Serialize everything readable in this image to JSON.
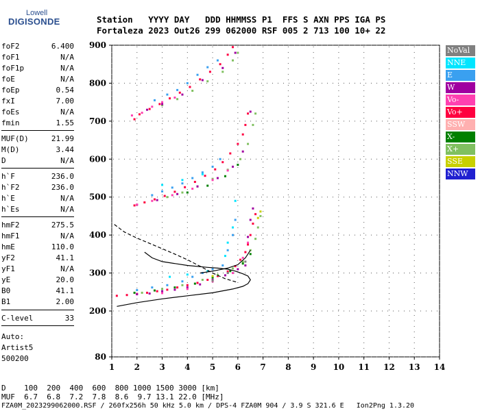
{
  "logo": {
    "top": "Lowell",
    "main": "DIGISONDE"
  },
  "header": {
    "line1": "Station   YYYY DAY   DDD HHMMSS P1  FFS S AXN PPS IGA PS",
    "line2": "Fortaleza 2023 Out26 299 062000 RSF 005 2 713 100 10+ 22"
  },
  "params": [
    {
      "k": "foF2",
      "v": "6.400"
    },
    {
      "k": "foF1",
      "v": "N/A"
    },
    {
      "k": "foF1p",
      "v": "N/A"
    },
    {
      "k": "foE",
      "v": "N/A"
    },
    {
      "k": "foEp",
      "v": "0.54"
    },
    {
      "k": "fxI",
      "v": "7.00"
    },
    {
      "k": "foEs",
      "v": "N/A"
    },
    {
      "k": "fmin",
      "v": "1.55"
    },
    {
      "k": "MUF(D)",
      "v": "21.99"
    },
    {
      "k": "M(D)",
      "v": "3.44"
    },
    {
      "k": "D",
      "v": "N/A"
    },
    {
      "k": "h`F",
      "v": "236.0"
    },
    {
      "k": "h`F2",
      "v": "236.0"
    },
    {
      "k": "h`E",
      "v": "N/A"
    },
    {
      "k": "h`Es",
      "v": "N/A"
    },
    {
      "k": "hmF2",
      "v": "275.5"
    },
    {
      "k": "hmF1",
      "v": "N/A"
    },
    {
      "k": "hmE",
      "v": "110.0"
    },
    {
      "k": "yF2",
      "v": "41.1"
    },
    {
      "k": "yF1",
      "v": "N/A"
    },
    {
      "k": "yE",
      "v": "20.0"
    },
    {
      "k": "B0",
      "v": "41.1"
    },
    {
      "k": "B1",
      "v": "2.00"
    },
    {
      "k": "C-level",
      "v": "33"
    }
  ],
  "auto": {
    "l1": "Auto:",
    "l2": "Artist5",
    "l3": "500200"
  },
  "legend": [
    {
      "label": "NoVal",
      "color": "#808080"
    },
    {
      "label": "NNE",
      "color": "#00e5ff"
    },
    {
      "label": "E",
      "color": "#3aa0f0"
    },
    {
      "label": "W",
      "color": "#a000a0"
    },
    {
      "label": "Vo-",
      "color": "#ff40b0"
    },
    {
      "label": "Vo+",
      "color": "#ff0040"
    },
    {
      "label": "SSW",
      "color": "#ffb0b0"
    },
    {
      "label": "X-",
      "color": "#008000"
    },
    {
      "label": "X+",
      "color": "#80c060"
    },
    {
      "label": "SSE",
      "color": "#c8d000"
    },
    {
      "label": "NNW",
      "color": "#2020d0"
    }
  ],
  "footer": {
    "d_line": "D    100  200  400  600  800 1000 1500 3000 [km]",
    "muf_line": "MUF  6.7  6.8  7.2  7.8  8.6  9.7 13.1 22.0 [MHz]",
    "file_line": "FZA0M_2023299062000.RSF / 260fx256h 50 kHz 5.0 km / DPS-4 FZA0M 904 / 3.9 S 321.6 E   Ion2Png 1.3.20"
  },
  "chart_data": {
    "type": "scatter",
    "xlim": [
      1,
      14
    ],
    "ylim": [
      80,
      900
    ],
    "x_ticks": [
      1,
      2,
      3,
      4,
      5,
      6,
      7,
      8,
      9,
      10,
      11,
      12,
      13,
      14
    ],
    "y_ticks": [
      80,
      200,
      300,
      400,
      500,
      600,
      700,
      800,
      900
    ],
    "series": [
      {
        "name": "Vo+",
        "points": [
          [
            1.2,
            240
          ],
          [
            1.6,
            242
          ],
          [
            2.0,
            245
          ],
          [
            2.4,
            248
          ],
          [
            2.8,
            252
          ],
          [
            3.2,
            256
          ],
          [
            3.6,
            262
          ],
          [
            4.0,
            268
          ],
          [
            4.4,
            274
          ],
          [
            4.8,
            282
          ],
          [
            5.2,
            292
          ],
          [
            5.6,
            304
          ],
          [
            5.9,
            318
          ],
          [
            6.1,
            335
          ],
          [
            6.3,
            355
          ],
          [
            6.4,
            375
          ],
          [
            6.5,
            400
          ],
          [
            6.6,
            430
          ],
          [
            6.7,
            455
          ],
          [
            1.9,
            705
          ],
          [
            2.1,
            718
          ],
          [
            2.5,
            732
          ],
          [
            2.9,
            745
          ],
          [
            3.3,
            760
          ],
          [
            3.7,
            775
          ],
          [
            4.1,
            790
          ],
          [
            4.5,
            810
          ],
          [
            4.9,
            830
          ],
          [
            5.3,
            850
          ],
          [
            5.6,
            875
          ],
          [
            5.8,
            895
          ],
          [
            1.9,
            478
          ],
          [
            2.3,
            486
          ],
          [
            2.7,
            494
          ],
          [
            3.1,
            503
          ],
          [
            3.5,
            514
          ],
          [
            3.9,
            526
          ],
          [
            4.3,
            540
          ],
          [
            4.7,
            556
          ],
          [
            5.1,
            573
          ],
          [
            5.4,
            592
          ],
          [
            5.7,
            615
          ],
          [
            6.0,
            640
          ],
          [
            6.2,
            665
          ],
          [
            6.3,
            690
          ],
          [
            6.4,
            720
          ]
        ]
      },
      {
        "name": "E",
        "points": [
          [
            2.0,
            255
          ],
          [
            2.6,
            262
          ],
          [
            3.2,
            268
          ],
          [
            3.8,
            278
          ],
          [
            4.2,
            290
          ],
          [
            4.6,
            300
          ],
          [
            5.0,
            310
          ],
          [
            5.4,
            320
          ],
          [
            5.6,
            360
          ],
          [
            5.8,
            400
          ],
          [
            5.9,
            440
          ],
          [
            2.7,
            755
          ],
          [
            3.2,
            770
          ],
          [
            3.6,
            782
          ],
          [
            4.0,
            800
          ],
          [
            4.4,
            822
          ],
          [
            4.8,
            842
          ],
          [
            5.2,
            860
          ],
          [
            2.6,
            505
          ],
          [
            3.0,
            515
          ],
          [
            3.4,
            525
          ],
          [
            3.8,
            536
          ],
          [
            4.2,
            550
          ],
          [
            4.6,
            565
          ],
          [
            5.0,
            580
          ],
          [
            5.3,
            600
          ]
        ]
      },
      {
        "name": "X+",
        "points": [
          [
            2.2,
            248
          ],
          [
            3.0,
            258
          ],
          [
            3.8,
            268
          ],
          [
            4.6,
            282
          ],
          [
            5.2,
            295
          ],
          [
            5.8,
            312
          ],
          [
            6.2,
            330
          ],
          [
            6.5,
            360
          ],
          [
            6.7,
            390
          ],
          [
            6.8,
            420
          ],
          [
            6.9,
            450
          ],
          [
            3.0,
            742
          ],
          [
            3.6,
            758
          ],
          [
            4.2,
            780
          ],
          [
            4.8,
            805
          ],
          [
            5.4,
            830
          ],
          [
            5.8,
            860
          ],
          [
            6.0,
            880
          ],
          [
            3.2,
            500
          ],
          [
            3.8,
            512
          ],
          [
            4.4,
            528
          ],
          [
            5.0,
            548
          ],
          [
            5.6,
            572
          ],
          [
            6.1,
            600
          ],
          [
            6.4,
            640
          ],
          [
            6.6,
            690
          ],
          [
            6.7,
            720
          ]
        ]
      },
      {
        "name": "X-",
        "points": [
          [
            1.9,
            248
          ],
          [
            2.7,
            254
          ],
          [
            3.5,
            262
          ],
          [
            4.3,
            272
          ],
          [
            5.0,
            288
          ],
          [
            5.7,
            305
          ],
          [
            6.2,
            325
          ],
          [
            6.5,
            350
          ],
          [
            4.0,
            512
          ],
          [
            4.8,
            530
          ],
          [
            5.5,
            555
          ],
          [
            6.0,
            585
          ]
        ]
      },
      {
        "name": "W",
        "points": [
          [
            2.0,
            244
          ],
          [
            2.5,
            246
          ],
          [
            3.0,
            252
          ],
          [
            3.5,
            256
          ],
          [
            4.0,
            262
          ],
          [
            4.5,
            270
          ],
          [
            5.0,
            282
          ],
          [
            5.5,
            294
          ],
          [
            6.0,
            310
          ],
          [
            6.3,
            320
          ],
          [
            6.4,
            395
          ],
          [
            6.5,
            440
          ],
          [
            6.6,
            470
          ],
          [
            2.4,
            730
          ],
          [
            3.0,
            745
          ],
          [
            3.8,
            770
          ],
          [
            4.6,
            808
          ],
          [
            5.4,
            840
          ],
          [
            5.9,
            880
          ],
          [
            2.0,
            480
          ],
          [
            2.8,
            492
          ],
          [
            3.6,
            508
          ],
          [
            4.4,
            528
          ],
          [
            5.2,
            550
          ],
          [
            5.8,
            580
          ],
          [
            6.2,
            620
          ],
          [
            6.5,
            725
          ]
        ]
      },
      {
        "name": "NNE",
        "points": [
          [
            3.3,
            290
          ],
          [
            4.0,
            296
          ],
          [
            4.8,
            305
          ],
          [
            5.5,
            345
          ],
          [
            5.6,
            380
          ],
          [
            5.8,
            420
          ],
          [
            5.9,
            490
          ],
          [
            3.0,
            532
          ],
          [
            3.8,
            545
          ],
          [
            4.6,
            560
          ]
        ]
      },
      {
        "name": "Vo-",
        "points": [
          [
            3.0,
            247
          ],
          [
            4.0,
            258
          ],
          [
            5.0,
            278
          ],
          [
            5.8,
            300
          ],
          [
            6.2,
            340
          ],
          [
            6.4,
            380
          ],
          [
            1.8,
            715
          ],
          [
            2.2,
            722
          ],
          [
            2.6,
            738
          ],
          [
            3.0,
            750
          ],
          [
            3.5,
            762
          ],
          [
            2.0,
            480
          ],
          [
            2.6,
            490
          ],
          [
            3.4,
            505
          ],
          [
            4.2,
            522
          ],
          [
            5.0,
            545
          ],
          [
            5.6,
            570
          ]
        ]
      },
      {
        "name": "SSE",
        "points": [
          [
            6.8,
            445
          ],
          [
            6.9,
            462
          ],
          [
            5.0,
            292
          ]
        ]
      },
      {
        "name": "NoVal",
        "points": [
          [
            5.0,
            280
          ],
          [
            5.6,
            300
          ],
          [
            6.3,
            330
          ]
        ]
      }
    ],
    "lines": [
      {
        "style": "solid",
        "points": [
          [
            1.2,
            212
          ],
          [
            2.0,
            222
          ],
          [
            3.0,
            232
          ],
          [
            4.0,
            240
          ],
          [
            5.0,
            248
          ],
          [
            5.8,
            258
          ],
          [
            6.2,
            265
          ],
          [
            6.4,
            272
          ],
          [
            6.5,
            282
          ],
          [
            6.4,
            292
          ],
          [
            6.2,
            298
          ],
          [
            5.9,
            305
          ],
          [
            5.6,
            310
          ],
          [
            5.2,
            313
          ],
          [
            4.8,
            315
          ],
          [
            4.0,
            320
          ],
          [
            3.0,
            330
          ],
          [
            2.6,
            340
          ],
          [
            2.3,
            355
          ]
        ]
      },
      {
        "style": "solid",
        "points": [
          [
            4.5,
            300
          ],
          [
            5.0,
            305
          ],
          [
            5.6,
            313
          ],
          [
            6.0,
            322
          ],
          [
            6.3,
            340
          ],
          [
            6.5,
            360
          ]
        ]
      },
      {
        "style": "dashed",
        "points": [
          [
            1.1,
            428
          ],
          [
            1.5,
            408
          ],
          [
            2.0,
            392
          ],
          [
            2.5,
            378
          ],
          [
            3.0,
            364
          ],
          [
            3.5,
            350
          ],
          [
            4.0,
            335
          ],
          [
            4.5,
            318
          ],
          [
            5.0,
            300
          ],
          [
            5.5,
            285
          ],
          [
            6.0,
            275
          ]
        ]
      }
    ]
  }
}
